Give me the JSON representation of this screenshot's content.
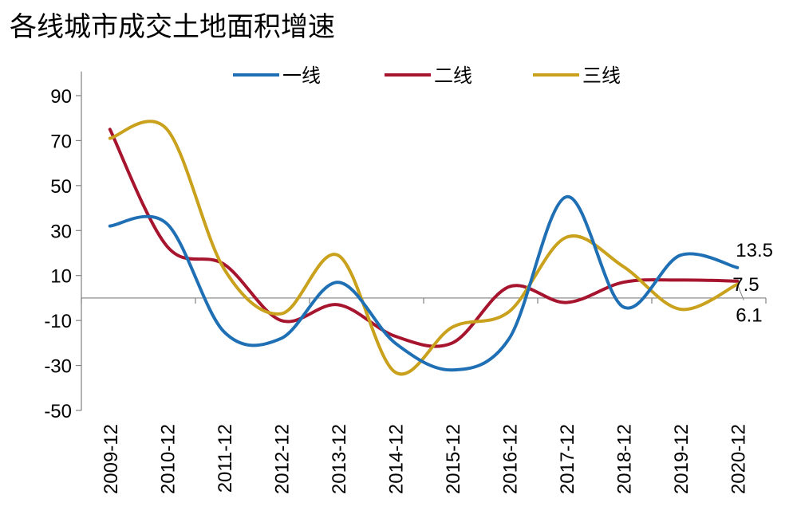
{
  "chart_data": {
    "type": "line",
    "title": "各线城市成交土地面积增速",
    "xlabel": "",
    "ylabel": "",
    "categories": [
      "2009-12",
      "2010-12",
      "2011-12",
      "2012-12",
      "2013-12",
      "2014-12",
      "2015-12",
      "2016-12",
      "2017-12",
      "2018-12",
      "2019-12",
      "2020-12"
    ],
    "ylim": [
      -50,
      100
    ],
    "yticks": [
      90,
      70,
      50,
      30,
      10,
      -10,
      -30,
      -50
    ],
    "x_axis_at": 0,
    "grid": false,
    "legend_position": "top",
    "series": [
      {
        "name": "一线",
        "color": "#1f6fb5",
        "values": [
          32,
          33,
          -15,
          -18,
          7,
          -20,
          -32,
          -18,
          45,
          -4,
          19,
          13.5
        ]
      },
      {
        "name": "二线",
        "color": "#a6142e",
        "values": [
          75,
          23,
          15,
          -10,
          -3,
          -17,
          -20,
          5,
          -2,
          7,
          8,
          7.5
        ]
      },
      {
        "name": "三线",
        "color": "#c9a11c",
        "values": [
          71,
          75,
          13,
          -7,
          19,
          -33,
          -13,
          -6,
          27,
          14,
          -5,
          6.1
        ]
      }
    ],
    "end_labels": [
      "13.5",
      "7.5",
      "6.1"
    ]
  }
}
